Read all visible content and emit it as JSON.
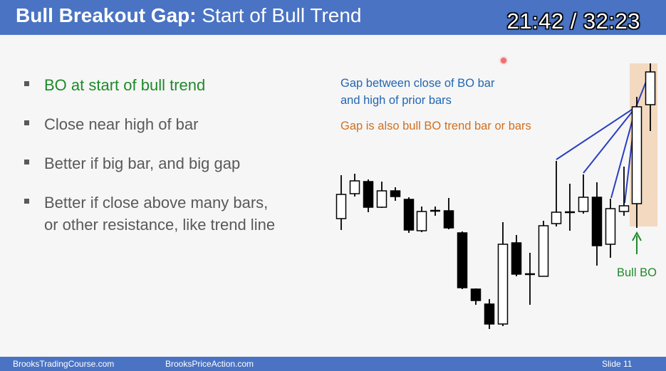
{
  "slide": {
    "title_bold": "Bull Breakout Gap:",
    "title_rest": " Start of Bull Trend",
    "timer": "21:42 / 32:23",
    "bullets": [
      {
        "text": "BO at start of bull trend"
      },
      {
        "text": "Close near high of bar"
      },
      {
        "text": "Better if big bar, and big gap"
      },
      {
        "text": "Better if close above many bars,"
      },
      {
        "text": "or other resistance, like trend line"
      }
    ],
    "notes": {
      "blue_line1": "Gap between close of BO bar",
      "blue_line2": "and high of prior bars",
      "orange": "Gap is also bull BO trend bar or bars"
    },
    "bull_bo_label": "Bull BO",
    "footer": {
      "left": "BrooksTradingCourse.com",
      "middle": "BrooksPriceAction.com",
      "right": "Slide  11"
    },
    "colors": {
      "header": "#4a73c3",
      "green_text": "#1e8a2a",
      "blue_note": "#2266b3",
      "orange_note": "#d07020",
      "gap_highlight": "#f2d9bf"
    }
  }
}
